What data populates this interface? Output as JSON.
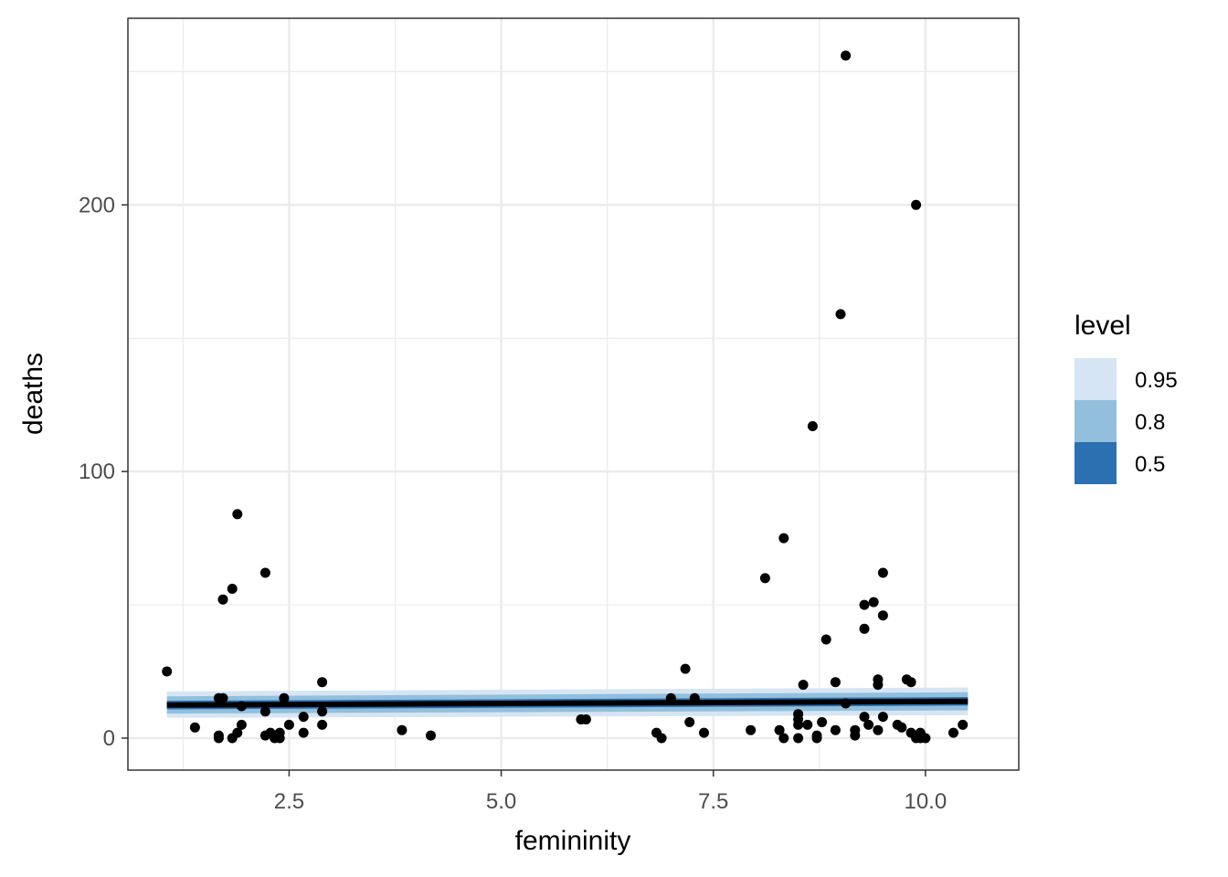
{
  "chart_data": {
    "type": "scatter",
    "xlabel": "femininity",
    "ylabel": "deaths",
    "xlim": [
      0.6,
      11.1
    ],
    "ylim": [
      -12,
      270
    ],
    "x_ticks": [
      2.5,
      5.0,
      7.5,
      10.0
    ],
    "x_tick_labels": [
      "2.5",
      "5.0",
      "7.5",
      "10.0"
    ],
    "y_ticks": [
      0,
      100,
      200
    ],
    "y_tick_labels": [
      "0",
      "100",
      "200"
    ],
    "grid": true,
    "colors": {
      "points": "#000000",
      "trend_line": "#000000",
      "band_95": "#d6e5f3",
      "band_80": "#92bfdc",
      "band_50": "#2b71b2",
      "grid": "#ebebeb",
      "panel_border": "#333333"
    },
    "legend": {
      "title": "level",
      "placement": "right",
      "entries": [
        {
          "label": "0.95",
          "color": "#d6e5f3"
        },
        {
          "label": "0.8",
          "color": "#92bfdc"
        },
        {
          "label": "0.5",
          "color": "#2b71b2"
        }
      ]
    },
    "trend": {
      "x": [
        1.06,
        10.5
      ],
      "y": [
        12.4,
        13.8
      ],
      "band_95": [
        [
          17.5,
          7.6
        ],
        [
          19.0,
          8.6
        ]
      ],
      "band_80": [
        [
          15.7,
          9.2
        ],
        [
          17.2,
          10.4
        ]
      ],
      "band_50": [
        [
          14.0,
          10.8
        ],
        [
          15.4,
          12.2
        ]
      ]
    },
    "points": [
      [
        9.06,
        256
      ],
      [
        9.89,
        200
      ],
      [
        9.0,
        159
      ],
      [
        8.67,
        117
      ],
      [
        1.89,
        84
      ],
      [
        8.33,
        75
      ],
      [
        2.22,
        62
      ],
      [
        9.5,
        62
      ],
      [
        8.11,
        60
      ],
      [
        1.83,
        56
      ],
      [
        1.72,
        52
      ],
      [
        9.28,
        50
      ],
      [
        9.39,
        51
      ],
      [
        9.5,
        46
      ],
      [
        9.28,
        41
      ],
      [
        8.83,
        37
      ],
      [
        1.06,
        25
      ],
      [
        7.17,
        26
      ],
      [
        2.89,
        21
      ],
      [
        8.56,
        20
      ],
      [
        8.94,
        21
      ],
      [
        9.44,
        22
      ],
      [
        9.44,
        20
      ],
      [
        9.78,
        22
      ],
      [
        9.83,
        21
      ],
      [
        1.67,
        15
      ],
      [
        1.72,
        15
      ],
      [
        2.44,
        15
      ],
      [
        7.0,
        15
      ],
      [
        7.28,
        15
      ],
      [
        9.06,
        13
      ],
      [
        1.94,
        12
      ],
      [
        2.22,
        10
      ],
      [
        2.89,
        10
      ],
      [
        8.5,
        9
      ],
      [
        2.67,
        8
      ],
      [
        8.5,
        7
      ],
      [
        9.28,
        8
      ],
      [
        9.5,
        8
      ],
      [
        5.94,
        7
      ],
      [
        6.0,
        7
      ],
      [
        7.22,
        6
      ],
      [
        8.78,
        6
      ],
      [
        8.5,
        5
      ],
      [
        8.61,
        5
      ],
      [
        9.33,
        5
      ],
      [
        9.67,
        5
      ],
      [
        9.72,
        4
      ],
      [
        10.44,
        5
      ],
      [
        2.89,
        5
      ],
      [
        1.94,
        5
      ],
      [
        2.5,
        5
      ],
      [
        1.39,
        4
      ],
      [
        1.89,
        2
      ],
      [
        2.28,
        2
      ],
      [
        2.67,
        2
      ],
      [
        2.33,
        1
      ],
      [
        2.39,
        2
      ],
      [
        2.22,
        1
      ],
      [
        3.83,
        3
      ],
      [
        4.17,
        1
      ],
      [
        6.83,
        2
      ],
      [
        7.39,
        2
      ],
      [
        7.94,
        3
      ],
      [
        8.28,
        3
      ],
      [
        8.94,
        3
      ],
      [
        9.17,
        3
      ],
      [
        9.44,
        3
      ],
      [
        9.83,
        2
      ],
      [
        9.94,
        2
      ],
      [
        10.33,
        2
      ],
      [
        1.67,
        1
      ],
      [
        1.67,
        0
      ],
      [
        1.83,
        0
      ],
      [
        2.33,
        0
      ],
      [
        2.39,
        0
      ],
      [
        6.89,
        0
      ],
      [
        8.33,
        0
      ],
      [
        8.5,
        0
      ],
      [
        8.72,
        0
      ],
      [
        8.72,
        1
      ],
      [
        9.17,
        1
      ],
      [
        9.89,
        0
      ],
      [
        9.94,
        0
      ],
      [
        10.0,
        0
      ]
    ]
  }
}
